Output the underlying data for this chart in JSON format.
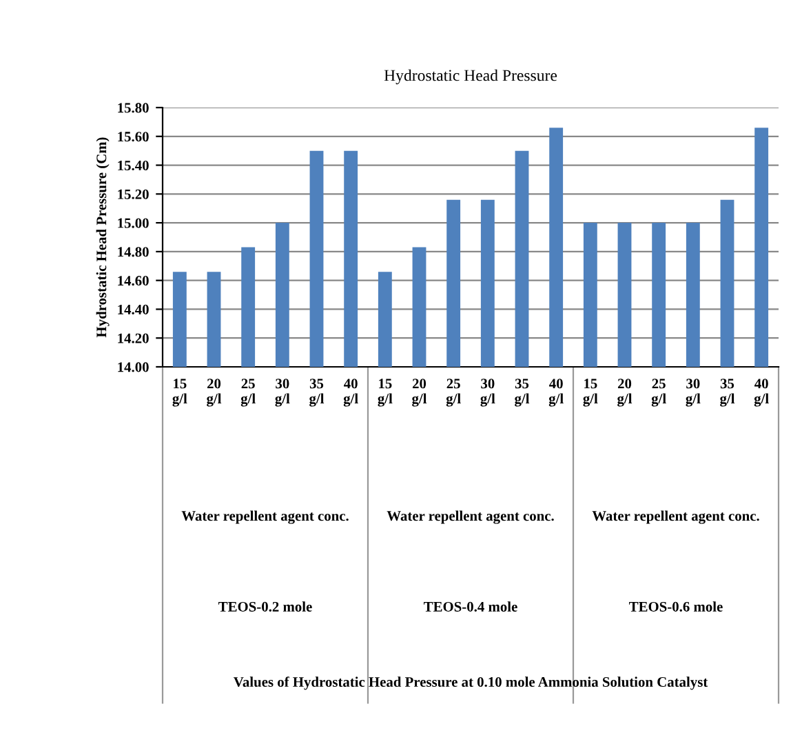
{
  "chart_data": {
    "type": "bar",
    "title": "Hydrostatic Head Pressure",
    "ylabel": "Hydrostatic Head Pressure (Cm)",
    "categories": [
      "15 g/l",
      "20 g/l",
      "25 g/l",
      "30 g/l",
      "35 g/l",
      "40 g/l",
      "15 g/l",
      "20 g/l",
      "25 g/l",
      "30 g/l",
      "35 g/l",
      "40 g/l",
      "15 g/l",
      "20 g/l",
      "25 g/l",
      "30 g/l",
      "35 g/l",
      "40 g/l"
    ],
    "values": [
      14.66,
      14.66,
      14.83,
      15.0,
      15.5,
      15.5,
      14.66,
      14.83,
      15.16,
      15.16,
      15.5,
      15.66,
      15.0,
      15.0,
      15.0,
      15.0,
      15.16,
      15.66
    ],
    "color": "#4f81bd",
    "ylim": [
      14.0,
      15.8
    ],
    "yticks": [
      {
        "value": 14.0,
        "label": "14.00"
      },
      {
        "value": 14.2,
        "label": "14.20"
      },
      {
        "value": 14.4,
        "label": "14.40"
      },
      {
        "value": 14.6,
        "label": "14.60"
      },
      {
        "value": 14.8,
        "label": "14.80"
      },
      {
        "value": 15.0,
        "label": "15.00"
      },
      {
        "value": 15.2,
        "label": "15.20"
      },
      {
        "value": 15.4,
        "label": "15.40"
      },
      {
        "value": 15.6,
        "label": "15.60"
      },
      {
        "value": 15.8,
        "label": "15.80"
      }
    ],
    "grid": "y",
    "legend": false,
    "annotations": [
      "Water repellent agent conc.",
      "Water repellent agent conc.",
      "Water repellent agent conc.",
      "TEOS-0.2 mole",
      "TEOS-0.4 mole",
      "TEOS-0.6 mole",
      "Values of Hydrostatic Head Pressure at 0.10 mole Ammonia Solution Catalyst"
    ]
  }
}
